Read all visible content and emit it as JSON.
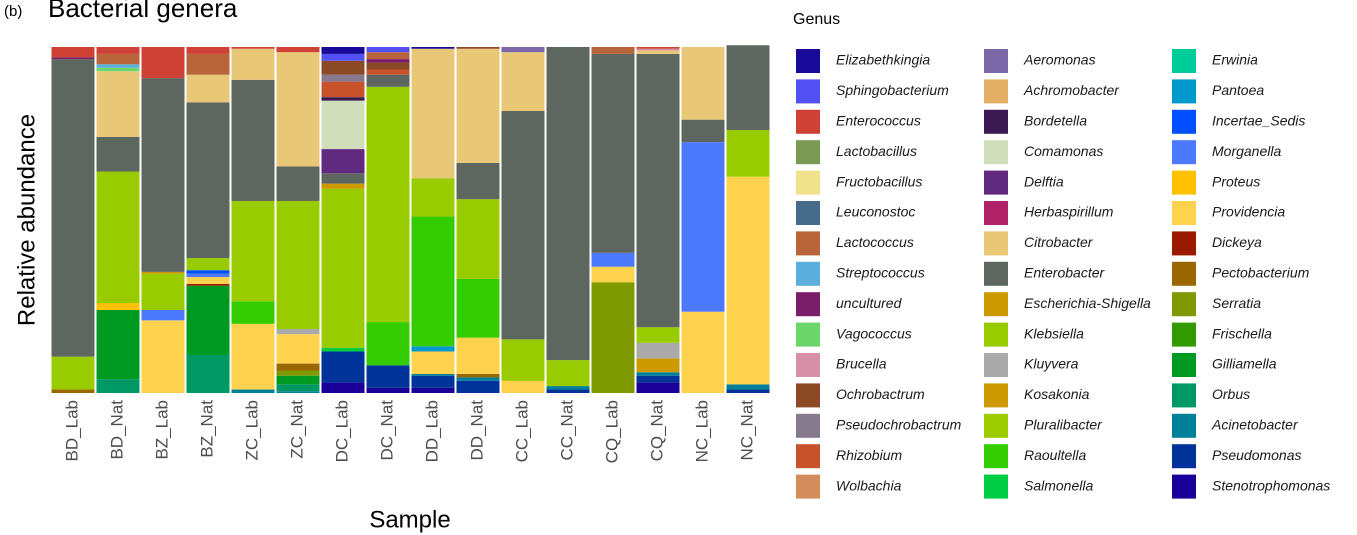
{
  "chart_data": {
    "type": "stacked_bar",
    "panel": "(b)",
    "title": "Bacterial genera",
    "xlabel": "Sample",
    "ylabel": "Relative abundance",
    "legend_title": "Genus",
    "ylim": [
      0,
      1
    ],
    "categories": [
      "BD_Lab",
      "BD_Nat",
      "BZ_Lab",
      "BZ_Nat",
      "ZC_Lab",
      "ZC_Nat",
      "DC_Lab",
      "DC_Nat",
      "DD_Lab",
      "DD_Nat",
      "CC_Lab",
      "CC_Nat",
      "CQ_Lab",
      "CQ_Nat",
      "NC_Lab",
      "NC_Nat"
    ],
    "series": [
      {
        "name": "Elizabethkingia",
        "color": "#1a0a99",
        "values": [
          0,
          0,
          0,
          0,
          0,
          0,
          0.02,
          0,
          0.005,
          0,
          0,
          0,
          0,
          0,
          0,
          0
        ]
      },
      {
        "name": "Sphingobacterium",
        "color": "#5350f5",
        "values": [
          0,
          0,
          0,
          0,
          0,
          0,
          0.02,
          0.015,
          0,
          0,
          0,
          0,
          0,
          0,
          0,
          0
        ]
      },
      {
        "name": "Enterococcus",
        "color": "#cf4135",
        "values": [
          0.03,
          0.02,
          0.09,
          0.02,
          0.005,
          0.015,
          0,
          0,
          0,
          0,
          0,
          0,
          0,
          0.005,
          0,
          0
        ]
      },
      {
        "name": "Lactobacillus",
        "color": "#7a9a55",
        "values": [
          0,
          0,
          0,
          0,
          0,
          0,
          0,
          0,
          0,
          0,
          0,
          0,
          0,
          0,
          0,
          0
        ]
      },
      {
        "name": "Fructobacillus",
        "color": "#f0e28a",
        "values": [
          0,
          0,
          0,
          0,
          0,
          0,
          0,
          0,
          0,
          0,
          0,
          0,
          0,
          0,
          0,
          0
        ]
      },
      {
        "name": "Leuconostoc",
        "color": "#456a8a",
        "values": [
          0,
          0,
          0,
          0,
          0,
          0,
          0,
          0,
          0,
          0,
          0,
          0,
          0,
          0,
          0,
          0
        ]
      },
      {
        "name": "Lactococcus",
        "color": "#b8643a",
        "values": [
          0,
          0.03,
          0,
          0.06,
          0,
          0,
          0,
          0.02,
          0,
          0,
          0,
          0,
          0.02,
          0,
          0,
          0
        ]
      },
      {
        "name": "Streptococcus",
        "color": "#5aafdd",
        "values": [
          0,
          0.01,
          0,
          0,
          0,
          0,
          0,
          0,
          0,
          0,
          0,
          0,
          0,
          0,
          0,
          0
        ]
      },
      {
        "name": "uncultured",
        "color": "#7a1e6a",
        "values": [
          0.005,
          0,
          0,
          0,
          0,
          0,
          0,
          0.01,
          0,
          0,
          0,
          0,
          0,
          0,
          0,
          0
        ]
      },
      {
        "name": "Vagococcus",
        "color": "#6cd66c",
        "values": [
          0,
          0.01,
          0,
          0,
          0,
          0,
          0,
          0,
          0,
          0,
          0,
          0,
          0,
          0,
          0,
          0
        ]
      },
      {
        "name": "Brucella",
        "color": "#d890a8",
        "values": [
          0,
          0,
          0,
          0,
          0,
          0,
          0,
          0,
          0,
          0,
          0,
          0,
          0,
          0.005,
          0,
          0
        ]
      },
      {
        "name": "Ochrobactrum",
        "color": "#8b4a25",
        "values": [
          0,
          0,
          0,
          0,
          0,
          0,
          0.04,
          0.02,
          0,
          0.005,
          0,
          0,
          0,
          0,
          0,
          0
        ]
      },
      {
        "name": "Pseudochrobactrum",
        "color": "#857a8e",
        "values": [
          0,
          0,
          0,
          0,
          0,
          0,
          0.02,
          0,
          0,
          0,
          0,
          0,
          0,
          0,
          0,
          0
        ]
      },
      {
        "name": "Rhizobium",
        "color": "#c8522a",
        "values": [
          0,
          0,
          0,
          0,
          0,
          0,
          0.045,
          0.015,
          0,
          0,
          0,
          0,
          0,
          0,
          0,
          0
        ]
      },
      {
        "name": "Wolbachia",
        "color": "#d48e5e",
        "values": [
          0,
          0,
          0,
          0,
          0,
          0,
          0,
          0,
          0,
          0,
          0,
          0,
          0,
          0,
          0,
          0
        ]
      },
      {
        "name": "Aeromonas",
        "color": "#7b68a8",
        "values": [
          0,
          0,
          0,
          0,
          0,
          0,
          0,
          0,
          0,
          0,
          0.015,
          0,
          0,
          0,
          0,
          0
        ]
      },
      {
        "name": "Achromobacter",
        "color": "#e4b068",
        "values": [
          0,
          0,
          0,
          0,
          0,
          0,
          0,
          0,
          0,
          0,
          0,
          0,
          0,
          0,
          0,
          0
        ]
      },
      {
        "name": "Bordetella",
        "color": "#3a1a50",
        "values": [
          0,
          0,
          0,
          0,
          0,
          0,
          0.01,
          0,
          0,
          0,
          0,
          0,
          0,
          0,
          0,
          0
        ]
      },
      {
        "name": "Comamonas",
        "color": "#d0dfba",
        "values": [
          0,
          0,
          0,
          0,
          0,
          0,
          0.14,
          0,
          0,
          0,
          0,
          0,
          0,
          0,
          0,
          0
        ]
      },
      {
        "name": "Delftia",
        "color": "#5f2a7f",
        "values": [
          0,
          0,
          0,
          0,
          0,
          0,
          0.07,
          0,
          0,
          0,
          0,
          0,
          0,
          0,
          0,
          0
        ]
      },
      {
        "name": "Herbaspirillum",
        "color": "#b02266",
        "values": [
          0,
          0,
          0,
          0,
          0,
          0,
          0,
          0,
          0,
          0,
          0,
          0,
          0,
          0,
          0,
          0
        ]
      },
      {
        "name": "Citrobacter",
        "color": "#e8c777",
        "values": [
          0,
          0.19,
          0,
          0.08,
          0.09,
          0.33,
          0,
          0,
          0.375,
          0.33,
          0.17,
          0,
          0,
          0.01,
          0.21,
          0
        ]
      },
      {
        "name": "Enterobacter",
        "color": "#5d6760",
        "values": [
          0.86,
          0.1,
          0.56,
          0.45,
          0.35,
          0.1,
          0.03,
          0.035,
          0,
          0.105,
          0.66,
          0.905,
          0.575,
          0.79,
          0.065,
          0.245
        ]
      },
      {
        "name": "Escherichia-Shigella",
        "color": "#cc9900",
        "values": [
          0,
          0,
          0.005,
          0,
          0,
          0,
          0.015,
          0,
          0,
          0,
          0,
          0,
          0,
          0,
          0,
          0
        ]
      },
      {
        "name": "Klebsiella",
        "color": "#99cc00",
        "values": [
          0.095,
          0.38,
          0.105,
          0.035,
          0.29,
          0.37,
          0.46,
          0.68,
          0.11,
          0.23,
          0.12,
          0.075,
          0,
          0.045,
          0,
          0.135
        ]
      },
      {
        "name": "Kluyvera",
        "color": "#aaaaaa",
        "values": [
          0,
          0,
          0,
          0,
          0,
          0.015,
          0,
          0,
          0,
          0,
          0,
          0,
          0,
          0.045,
          0,
          0
        ]
      },
      {
        "name": "Kosakonia",
        "color": "#cc9a00",
        "values": [
          0,
          0,
          0,
          0,
          0,
          0,
          0,
          0,
          0,
          0,
          0,
          0,
          0,
          0.04,
          0,
          0
        ]
      },
      {
        "name": "Pluralibacter",
        "color": "#9dcc00",
        "values": [
          0,
          0,
          0,
          0,
          0,
          0,
          0,
          0,
          0,
          0,
          0,
          0,
          0,
          0,
          0,
          0
        ]
      },
      {
        "name": "Raoultella",
        "color": "#33cc00",
        "values": [
          0,
          0,
          0,
          0,
          0.065,
          0,
          0,
          0.125,
          0.375,
          0.17,
          0,
          0,
          0,
          0,
          0,
          0
        ]
      },
      {
        "name": "Salmonella",
        "color": "#00cc44",
        "values": [
          0,
          0,
          0,
          0,
          0,
          0,
          0.01,
          0,
          0,
          0,
          0,
          0,
          0,
          0,
          0,
          0
        ]
      },
      {
        "name": "Erwinia",
        "color": "#00cc99",
        "values": [
          0,
          0,
          0,
          0,
          0,
          0,
          0,
          0,
          0,
          0,
          0,
          0,
          0,
          0,
          0,
          0
        ]
      },
      {
        "name": "Pantoea",
        "color": "#0099cc",
        "values": [
          0,
          0,
          0,
          0,
          0,
          0,
          0,
          0,
          0.015,
          0,
          0,
          0,
          0,
          0,
          0,
          0
        ]
      },
      {
        "name": "Incertae_Sedis",
        "color": "#0050ff",
        "values": [
          0,
          0,
          0,
          0.01,
          0,
          0,
          0,
          0,
          0,
          0,
          0,
          0,
          0,
          0,
          0,
          0
        ]
      },
      {
        "name": "Morganella",
        "color": "#4d79ff",
        "values": [
          0,
          0,
          0.03,
          0.01,
          0,
          0,
          0,
          0,
          0,
          0,
          0,
          0,
          0.04,
          0,
          0.49,
          0
        ]
      },
      {
        "name": "Proteus",
        "color": "#ffc000",
        "values": [
          0,
          0.02,
          0,
          0,
          0,
          0,
          0,
          0,
          0,
          0,
          0,
          0,
          0,
          0,
          0,
          0
        ]
      },
      {
        "name": "Providencia",
        "color": "#ffd24d",
        "values": [
          0,
          0,
          0.21,
          0.02,
          0.19,
          0.085,
          0,
          0,
          0.065,
          0.105,
          0.035,
          0,
          0.045,
          0,
          0.235,
          0.6
        ]
      },
      {
        "name": "Dickeya",
        "color": "#991a00",
        "values": [
          0,
          0,
          0,
          0.005,
          0,
          0,
          0,
          0,
          0,
          0,
          0,
          0,
          0,
          0,
          0,
          0
        ]
      },
      {
        "name": "Pectobacterium",
        "color": "#996600",
        "values": [
          0.01,
          0,
          0,
          0,
          0,
          0.02,
          0,
          0,
          0,
          0.01,
          0,
          0,
          0,
          0,
          0,
          0
        ]
      },
      {
        "name": "Serratia",
        "color": "#7f9900",
        "values": [
          0,
          0,
          0,
          0,
          0,
          0.015,
          0,
          0,
          0,
          0,
          0,
          0,
          0.32,
          0,
          0,
          0
        ]
      },
      {
        "name": "Frischella",
        "color": "#339900",
        "values": [
          0,
          0,
          0,
          0,
          0,
          0,
          0,
          0,
          0,
          0,
          0,
          0,
          0,
          0,
          0,
          0
        ]
      },
      {
        "name": "Gilliamella",
        "color": "#009922",
        "values": [
          0,
          0.2,
          0,
          0.2,
          0,
          0.025,
          0,
          0,
          0,
          0,
          0,
          0,
          0,
          0,
          0,
          0
        ]
      },
      {
        "name": "Orbus",
        "color": "#009966",
        "values": [
          0,
          0.04,
          0,
          0.11,
          0,
          0.02,
          0,
          0,
          0,
          0,
          0,
          0,
          0,
          0,
          0,
          0
        ]
      },
      {
        "name": "Acinetobacter",
        "color": "#007f99",
        "values": [
          0,
          0,
          0,
          0,
          0.01,
          0.005,
          0,
          0,
          0.005,
          0.01,
          0,
          0.01,
          0,
          0.01,
          0,
          0.015
        ]
      },
      {
        "name": "Pseudomonas",
        "color": "#003399",
        "values": [
          0,
          0,
          0,
          0,
          0,
          0,
          0.09,
          0.065,
          0.035,
          0.035,
          0,
          0.01,
          0,
          0.02,
          0,
          0.01
        ]
      },
      {
        "name": "Stenotrophomonas",
        "color": "#1a0099",
        "values": [
          0,
          0,
          0,
          0,
          0,
          0,
          0.03,
          0.015,
          0.015,
          0,
          0,
          0,
          0,
          0.03,
          0,
          0
        ]
      }
    ]
  }
}
